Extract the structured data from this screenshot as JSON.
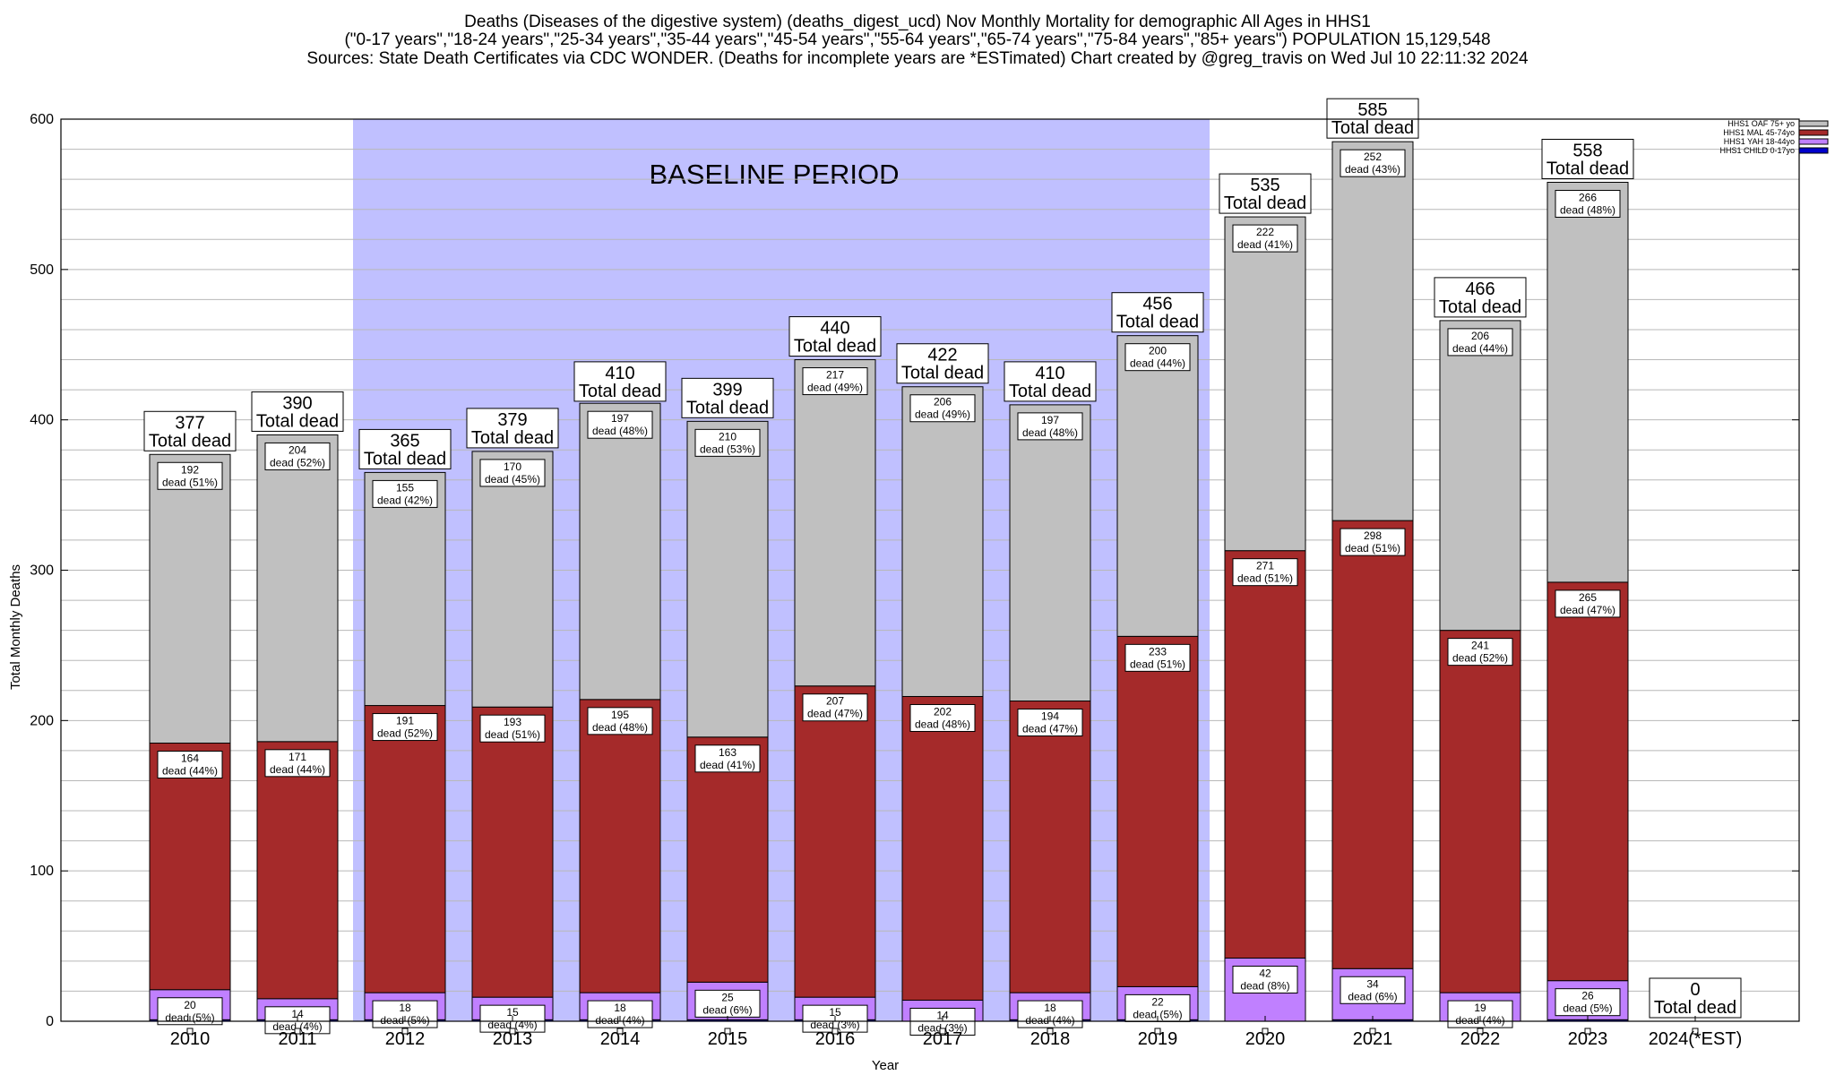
{
  "title_lines": [
    "Deaths (Diseases of the digestive system) (deaths_digest_ucd) Nov Monthly Mortality for demographic All Ages in HHS1",
    "(\"0-17 years\",\"18-24 years\",\"25-34 years\",\"35-44 years\",\"45-54 years\",\"55-64 years\",\"65-74 years\",\"75-84 years\",\"85+ years\") POPULATION 15,129,548",
    "Sources: State Death Certificates via CDC WONDER. (Deaths for incomplete years are *ESTimated)                Chart created by @greg_travis on Wed Jul 10 22:11:32 2024"
  ],
  "chart_data": {
    "type": "bar",
    "stacked": true,
    "xlabel": "Year",
    "ylabel": "Total Monthly Deaths",
    "ylim": [
      0,
      600
    ],
    "yticks": [
      0,
      100,
      200,
      300,
      400,
      500,
      600
    ],
    "grid": true,
    "legend_position": "top-right",
    "categories": [
      "2010",
      "2011",
      "2012",
      "2013",
      "2014",
      "2015",
      "2016",
      "2017",
      "2018",
      "2019",
      "2020",
      "2021",
      "2022",
      "2023",
      "2024(*EST)"
    ],
    "baseline": {
      "label": "BASELINE PERIOD",
      "from": "2012",
      "to": "2019",
      "color": "#c0c0ff"
    },
    "series": [
      {
        "name": "HHS1 CHILD 0-17yo",
        "color": "#0000cc",
        "values": [
          1,
          1,
          1,
          1,
          1,
          1,
          1,
          0,
          1,
          1,
          0,
          1,
          0,
          1,
          0
        ],
        "labels": [
          "",
          "",
          "",
          "",
          "",
          "",
          "",
          "",
          "",
          "",
          "",
          "",
          "",
          "",
          ""
        ]
      },
      {
        "name": "HHS1 YAH 18-44yo",
        "color": "#c080ff",
        "values": [
          20,
          14,
          18,
          15,
          18,
          25,
          15,
          14,
          18,
          22,
          42,
          34,
          19,
          26,
          0
        ],
        "labels": [
          "20\ndead (5%)",
          "14\ndead (4%)",
          "18\ndead (5%)",
          "15\ndead (4%)",
          "18\ndead (4%)",
          "25\ndead (6%)",
          "15\ndead (3%)",
          "14\ndead (3%)",
          "18\ndead (4%)",
          "22\ndead (5%)",
          "42\ndead (8%)",
          "34\ndead (6%)",
          "19\ndead (4%)",
          "26\ndead (5%)",
          ""
        ]
      },
      {
        "name": "HHS1 MAL 45-74yo",
        "color": "#a52a2a",
        "values": [
          164,
          171,
          191,
          193,
          195,
          163,
          207,
          202,
          194,
          233,
          271,
          298,
          241,
          265,
          0
        ],
        "labels": [
          "164\ndead (44%)",
          "171\ndead (44%)",
          "191\ndead (52%)",
          "193\ndead (51%)",
          "195\ndead (48%)",
          "163\ndead (41%)",
          "207\ndead (47%)",
          "202\ndead (48%)",
          "194\ndead (47%)",
          "233\ndead (51%)",
          "271\ndead (51%)",
          "298\ndead (51%)",
          "241\ndead (52%)",
          "265\ndead (47%)",
          ""
        ]
      },
      {
        "name": "HHS1 OAF 75+ yo",
        "color": "#c0c0c0",
        "values": [
          192,
          204,
          155,
          170,
          197,
          210,
          217,
          206,
          197,
          200,
          222,
          252,
          206,
          266,
          0
        ],
        "labels": [
          "192\ndead (51%)",
          "204\ndead (52%)",
          "155\ndead (42%)",
          "170\ndead (45%)",
          "197\ndead (48%)",
          "210\ndead (53%)",
          "217\ndead (49%)",
          "206\ndead (49%)",
          "197\ndead (48%)",
          "200\ndead (44%)",
          "222\ndead (41%)",
          "252\ndead (43%)",
          "206\ndead (44%)",
          "266\ndead (48%)",
          ""
        ]
      }
    ],
    "totals": [
      377,
      390,
      365,
      379,
      410,
      399,
      440,
      422,
      410,
      456,
      535,
      585,
      466,
      558,
      0
    ],
    "total_label_suffix": "Total dead"
  }
}
